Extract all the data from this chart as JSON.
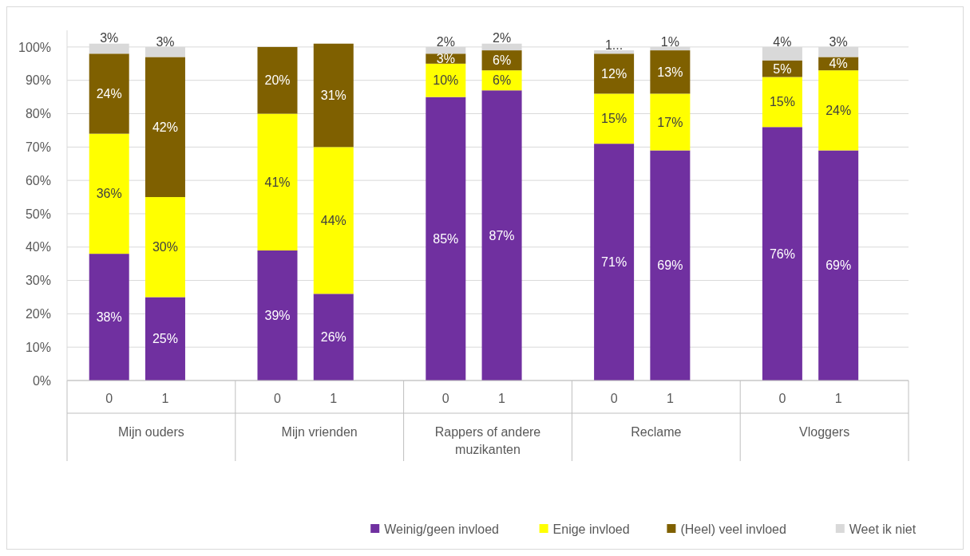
{
  "chart_data": {
    "type": "bar",
    "stacked": true,
    "categories": [
      "0",
      "1",
      "0",
      "1",
      "0",
      "1",
      "0",
      "1",
      "0",
      "1"
    ],
    "annotations": [
      "Mijn ouders",
      "Mijn vrienden",
      "Rappers of andere muzikanten",
      "Reclame",
      "Vloggers"
    ],
    "series": [
      {
        "name": "Weinig/geen invloed",
        "color": "#7030a0",
        "values": [
          38,
          25,
          39,
          26,
          85,
          87,
          71,
          69,
          76,
          69
        ],
        "value_labels": [
          "38%",
          "25%",
          "39%",
          "26%",
          "85%",
          "87%",
          "71%",
          "69%",
          "76%",
          "69%"
        ]
      },
      {
        "name": "Enige invloed",
        "color": "#ffff00",
        "values": [
          36,
          30,
          41,
          44,
          10,
          6,
          15,
          17,
          15,
          24
        ],
        "value_labels": [
          "36%",
          "30%",
          "41%",
          "44%",
          "10%",
          "6%",
          "15%",
          "17%",
          "15%",
          "24%"
        ]
      },
      {
        "name": "(Heel) veel invloed",
        "color": "#7f6000",
        "values": [
          24,
          42,
          20,
          31,
          3,
          6,
          12,
          13,
          5,
          4
        ],
        "value_labels": [
          "24%",
          "42%",
          "20%",
          "31%",
          "3%",
          "6%",
          "12%",
          "13%",
          "5%",
          "4%"
        ]
      },
      {
        "name": "Weet ik niet",
        "color": "#d9d9d9",
        "values": [
          3,
          3,
          null,
          null,
          2,
          2,
          1,
          1,
          4,
          3
        ],
        "value_labels": [
          "3%",
          "3%",
          null,
          null,
          "2%",
          "2%",
          "1...",
          "1%",
          "4%",
          "3%"
        ]
      }
    ],
    "ylim": [
      0,
      105
    ],
    "yticks": [
      {
        "value": 0,
        "label": "0%"
      },
      {
        "value": 10,
        "label": "10%"
      },
      {
        "value": 20,
        "label": "20%"
      },
      {
        "value": 30,
        "label": "30%"
      },
      {
        "value": 40,
        "label": "40%"
      },
      {
        "value": 50,
        "label": "50%"
      },
      {
        "value": 60,
        "label": "60%"
      },
      {
        "value": 70,
        "label": "70%"
      },
      {
        "value": 80,
        "label": "80%"
      },
      {
        "value": 90,
        "label": "90%"
      },
      {
        "value": 100,
        "label": "100%"
      }
    ],
    "grid": "y",
    "legend": "bottom right"
  }
}
